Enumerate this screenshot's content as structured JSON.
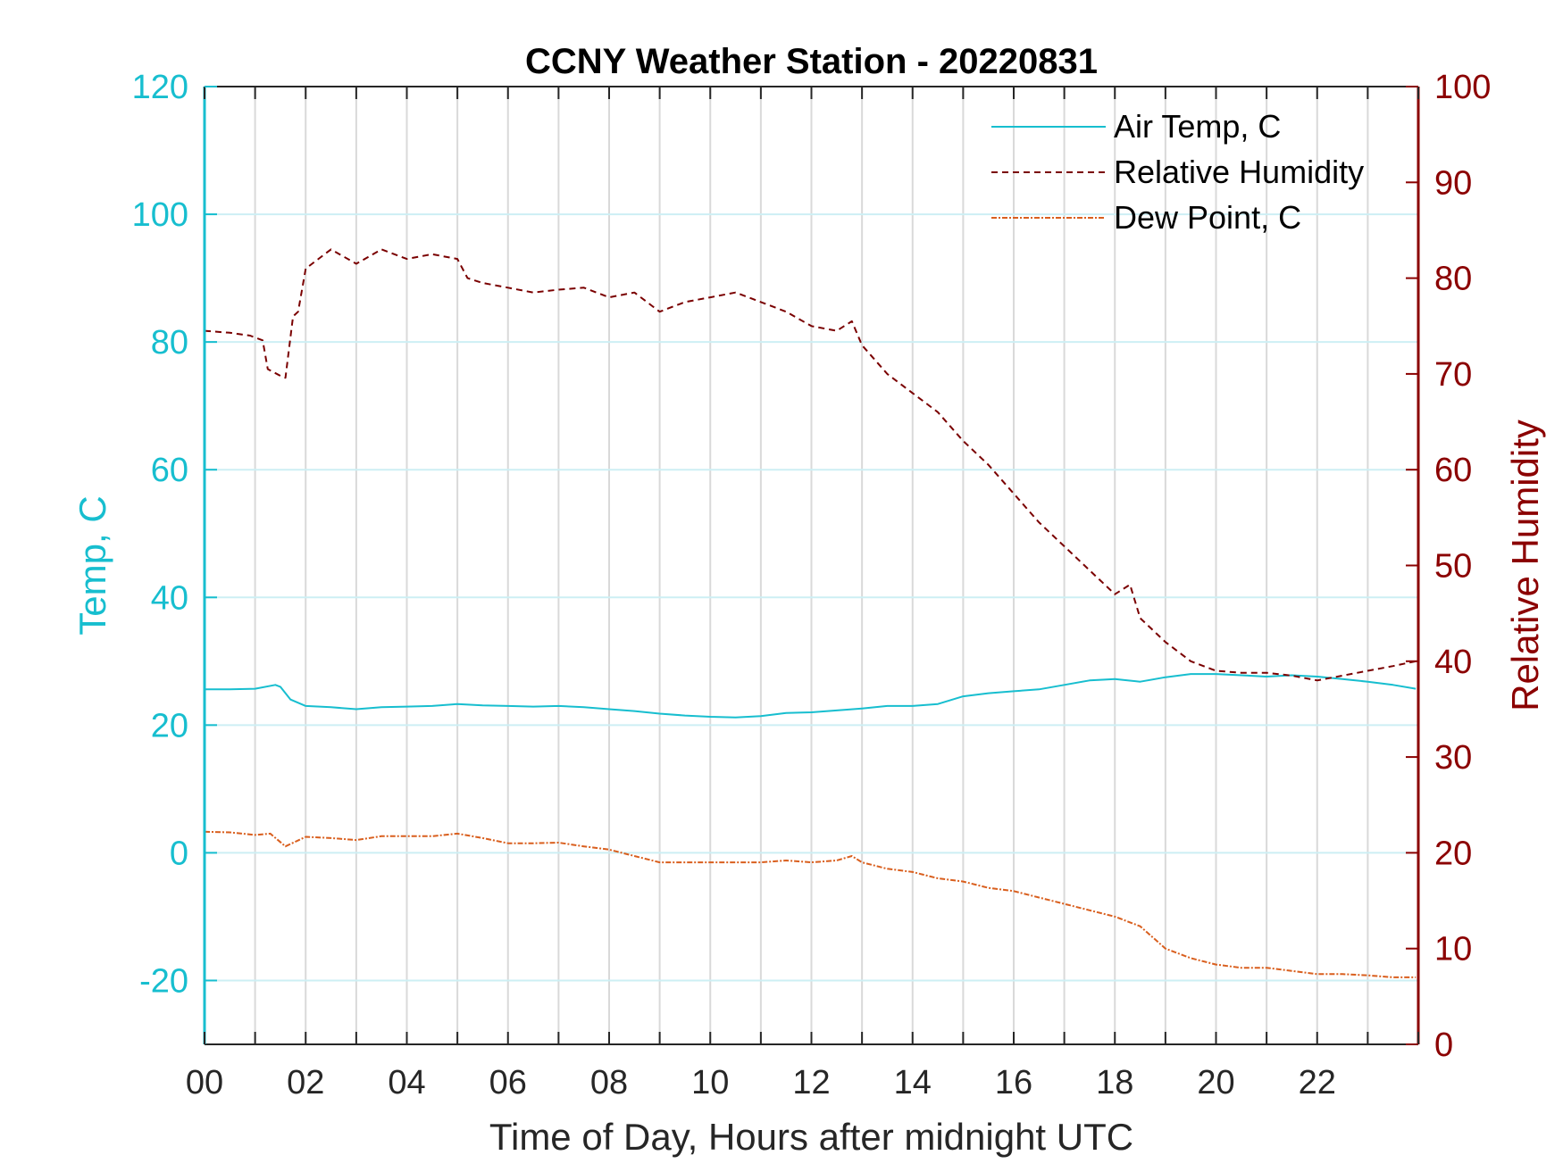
{
  "chart_data": {
    "type": "line",
    "title": "CCNY Weather Station - 20220831",
    "xlabel": "Time of Day, Hours after midnight UTC",
    "ylabel_left": "Temp, C",
    "ylabel_right": "Relative Humidity",
    "xlim": [
      0,
      24
    ],
    "ylim_left": [
      -30,
      120
    ],
    "ylim_right": [
      0,
      100
    ],
    "x_ticks": [
      0,
      2,
      4,
      6,
      8,
      10,
      12,
      14,
      16,
      18,
      20,
      22
    ],
    "x_tick_labels": [
      "00",
      "02",
      "04",
      "06",
      "08",
      "10",
      "12",
      "14",
      "16",
      "18",
      "20",
      "22"
    ],
    "y_ticks_left": [
      120,
      100,
      80,
      60,
      40,
      20,
      0,
      -20
    ],
    "y_ticks_right": [
      100,
      90,
      80,
      70,
      60,
      50,
      40,
      30,
      20,
      10,
      0
    ],
    "grid": true,
    "legend_position": "top-right",
    "colors": {
      "air_temp": "#17BECF",
      "humidity": "#7A0000",
      "dew_point": "#D95F1E",
      "right_axis": "#8B0000",
      "grid": "#D9D9D9"
    },
    "series": [
      {
        "name": "Air Temp, C",
        "axis": "left",
        "style": "solid",
        "x": [
          0,
          0.5,
          1.0,
          1.4,
          1.5,
          1.7,
          2.0,
          2.5,
          3.0,
          3.5,
          4.0,
          4.5,
          5.0,
          5.5,
          6.0,
          6.5,
          7.0,
          7.5,
          8.0,
          8.5,
          9.0,
          9.5,
          10.0,
          10.5,
          11.0,
          11.5,
          12.0,
          12.5,
          13.0,
          13.5,
          14.0,
          14.5,
          15.0,
          15.5,
          16.0,
          16.5,
          17.0,
          17.5,
          18.0,
          18.5,
          19.0,
          19.5,
          20.0,
          20.5,
          21.0,
          21.5,
          22.0,
          22.5,
          23.0,
          23.5,
          23.95
        ],
        "values": [
          25.6,
          25.6,
          25.7,
          26.3,
          26.0,
          24.0,
          23.0,
          22.8,
          22.5,
          22.8,
          22.9,
          23.0,
          23.3,
          23.1,
          23.0,
          22.9,
          23.0,
          22.8,
          22.5,
          22.2,
          21.8,
          21.5,
          21.3,
          21.2,
          21.4,
          21.9,
          22.0,
          22.3,
          22.6,
          23.0,
          23.0,
          23.3,
          24.5,
          25.0,
          25.3,
          25.6,
          26.3,
          27.0,
          27.2,
          26.8,
          27.5,
          28.0,
          28.0,
          27.8,
          27.6,
          27.8,
          27.6,
          27.2,
          26.8,
          26.3,
          25.7
        ]
      },
      {
        "name": "Relative Humidity",
        "axis": "right",
        "style": "dashed",
        "x": [
          0,
          0.5,
          0.9,
          1.15,
          1.25,
          1.5,
          1.6,
          1.75,
          1.85,
          2.0,
          2.5,
          3.0,
          3.5,
          4.0,
          4.5,
          5.0,
          5.2,
          5.5,
          6.0,
          6.5,
          7.0,
          7.5,
          8.0,
          8.5,
          9.0,
          9.5,
          10.0,
          10.5,
          11.0,
          11.5,
          12.0,
          12.5,
          12.8,
          13.0,
          13.5,
          14.0,
          14.5,
          15.0,
          15.5,
          16.0,
          16.5,
          17.0,
          17.5,
          18.0,
          18.3,
          18.5,
          19.0,
          19.5,
          20.0,
          20.5,
          21.0,
          21.5,
          22.0,
          22.5,
          23.0,
          23.5,
          23.95
        ],
        "values": [
          74.5,
          74.3,
          74.0,
          73.5,
          70.5,
          69.8,
          69.6,
          76.0,
          76.5,
          81.0,
          83.0,
          81.5,
          83.0,
          82.0,
          82.5,
          82.0,
          80.0,
          79.5,
          79.0,
          78.5,
          78.8,
          79.0,
          78.0,
          78.5,
          76.5,
          77.5,
          78.0,
          78.5,
          77.5,
          76.5,
          75.0,
          74.5,
          75.5,
          73.0,
          70.0,
          68.0,
          66.0,
          63.0,
          60.5,
          57.5,
          54.5,
          52.0,
          49.5,
          47.0,
          48.0,
          44.5,
          42.0,
          40.0,
          39.0,
          38.8,
          38.8,
          38.5,
          38.0,
          38.5,
          39.0,
          39.5,
          40.0
        ]
      },
      {
        "name": "Dew Point, C",
        "axis": "left",
        "style": "dashdot",
        "x": [
          0,
          0.5,
          1.0,
          1.3,
          1.6,
          2.0,
          2.5,
          3.0,
          3.5,
          4.0,
          4.5,
          5.0,
          5.5,
          6.0,
          6.5,
          7.0,
          7.5,
          8.0,
          8.5,
          9.0,
          9.5,
          10.0,
          10.5,
          11.0,
          11.5,
          12.0,
          12.5,
          12.8,
          13.0,
          13.5,
          14.0,
          14.5,
          15.0,
          15.5,
          16.0,
          16.5,
          17.0,
          17.5,
          18.0,
          18.5,
          19.0,
          19.5,
          20.0,
          20.5,
          21.0,
          21.5,
          22.0,
          22.5,
          23.0,
          23.5,
          23.95
        ],
        "values": [
          3.3,
          3.2,
          2.8,
          3.0,
          1.0,
          2.5,
          2.3,
          2.0,
          2.6,
          2.6,
          2.6,
          3.0,
          2.3,
          1.5,
          1.5,
          1.6,
          1.0,
          0.5,
          -0.5,
          -1.5,
          -1.5,
          -1.5,
          -1.5,
          -1.5,
          -1.2,
          -1.5,
          -1.2,
          -0.5,
          -1.5,
          -2.5,
          -3.0,
          -4.0,
          -4.5,
          -5.5,
          -6.0,
          -7.0,
          -8.0,
          -9.0,
          -10.0,
          -11.5,
          -15.0,
          -16.5,
          -17.5,
          -18.0,
          -18.0,
          -18.5,
          -19.0,
          -19.0,
          -19.2,
          -19.5,
          -19.5
        ]
      }
    ]
  }
}
